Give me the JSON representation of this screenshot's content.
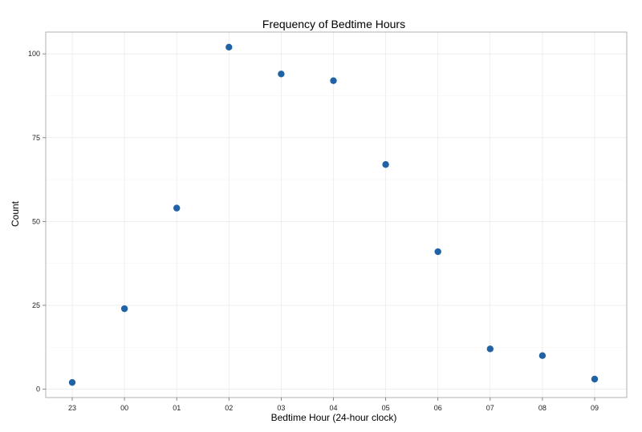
{
  "chart_data": {
    "type": "scatter",
    "title": "Frequency of Bedtime Hours",
    "xlabel": "Bedtime Hour (24-hour clock)",
    "ylabel": "Count",
    "categories": [
      "23",
      "00",
      "01",
      "02",
      "03",
      "04",
      "05",
      "06",
      "07",
      "08",
      "09"
    ],
    "values": [
      2,
      24,
      54,
      102,
      94,
      92,
      67,
      41,
      12,
      10,
      3
    ],
    "yticks": [
      0,
      25,
      50,
      75,
      100
    ],
    "ylim": [
      -2.5,
      106.5
    ],
    "grid": true,
    "point_color": "#1f63a5",
    "legend": "none"
  }
}
